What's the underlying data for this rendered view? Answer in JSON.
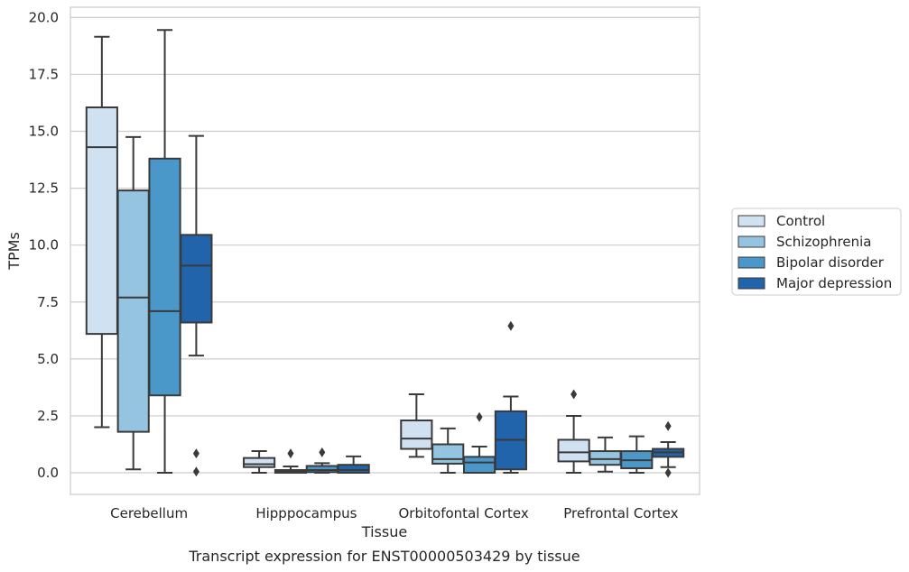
{
  "chart_data": {
    "type": "box",
    "xlabel": "Tissue",
    "ylabel": "TPMs",
    "caption": "Transcript expression for ENST00000503429 by tissue",
    "ylim": [
      -0.95,
      20.45
    ],
    "yticks": [
      0.0,
      2.5,
      5.0,
      7.5,
      10.0,
      12.5,
      15.0,
      17.5,
      20.0
    ],
    "ytick_labels": [
      "0.0",
      "2.5",
      "5.0",
      "7.5",
      "10.0",
      "12.5",
      "15.0",
      "17.5",
      "20.0"
    ],
    "grid": "horizontal",
    "legend_position": "right",
    "categories": [
      "Cerebellum",
      "Hipppocampus",
      "Orbitofontal Cortex",
      "Prefrontal Cortex"
    ],
    "series": [
      {
        "name": "Control",
        "color": "#d0e1f2",
        "boxes": [
          {
            "whislo": 2.0,
            "q1": 6.1,
            "med": 14.3,
            "q3": 16.05,
            "whishi": 19.15,
            "fliers": []
          },
          {
            "whislo": 0.0,
            "q1": 0.25,
            "med": 0.38,
            "q3": 0.65,
            "whishi": 0.95,
            "fliers": []
          },
          {
            "whislo": 0.7,
            "q1": 1.05,
            "med": 1.5,
            "q3": 2.3,
            "whishi": 3.45,
            "fliers": []
          },
          {
            "whislo": 0.0,
            "q1": 0.5,
            "med": 0.9,
            "q3": 1.45,
            "whishi": 2.5,
            "fliers": [
              3.45
            ]
          }
        ]
      },
      {
        "name": "Schizophrenia",
        "color": "#94c4df",
        "boxes": [
          {
            "whislo": 0.15,
            "q1": 1.8,
            "med": 7.7,
            "q3": 12.4,
            "whishi": 14.75,
            "fliers": []
          },
          {
            "whislo": 0.0,
            "q1": 0.0,
            "med": 0.08,
            "q3": 0.12,
            "whishi": 0.28,
            "fliers": [
              0.85
            ]
          },
          {
            "whislo": 0.0,
            "q1": 0.4,
            "med": 0.6,
            "q3": 1.25,
            "whishi": 1.95,
            "fliers": []
          },
          {
            "whislo": 0.05,
            "q1": 0.35,
            "med": 0.6,
            "q3": 0.95,
            "whishi": 1.55,
            "fliers": []
          }
        ]
      },
      {
        "name": "Bipolar disorder",
        "color": "#4a98c9",
        "boxes": [
          {
            "whislo": 0.0,
            "q1": 3.4,
            "med": 7.1,
            "q3": 13.8,
            "whishi": 19.45,
            "fliers": []
          },
          {
            "whislo": 0.0,
            "q1": 0.03,
            "med": 0.12,
            "q3": 0.3,
            "whishi": 0.42,
            "fliers": [
              0.9
            ]
          },
          {
            "whislo": 0.0,
            "q1": 0.0,
            "med": 0.45,
            "q3": 0.7,
            "whishi": 1.15,
            "fliers": [
              2.45
            ]
          },
          {
            "whislo": 0.0,
            "q1": 0.2,
            "med": 0.55,
            "q3": 0.95,
            "whishi": 1.6,
            "fliers": []
          }
        ]
      },
      {
        "name": "Major depression",
        "color": "#2164ab",
        "boxes": [
          {
            "whislo": 5.15,
            "q1": 6.6,
            "med": 9.1,
            "q3": 10.45,
            "whishi": 14.8,
            "fliers": [
              0.85,
              0.05
            ]
          },
          {
            "whislo": 0.0,
            "q1": 0.0,
            "med": 0.12,
            "q3": 0.35,
            "whishi": 0.72,
            "fliers": []
          },
          {
            "whislo": 0.0,
            "q1": 0.15,
            "med": 1.45,
            "q3": 2.7,
            "whishi": 3.35,
            "fliers": [
              6.45
            ]
          },
          {
            "whislo": 0.25,
            "q1": 0.7,
            "med": 0.9,
            "q3": 1.05,
            "whishi": 1.35,
            "fliers": [
              2.05,
              0.0
            ]
          }
        ]
      }
    ]
  }
}
